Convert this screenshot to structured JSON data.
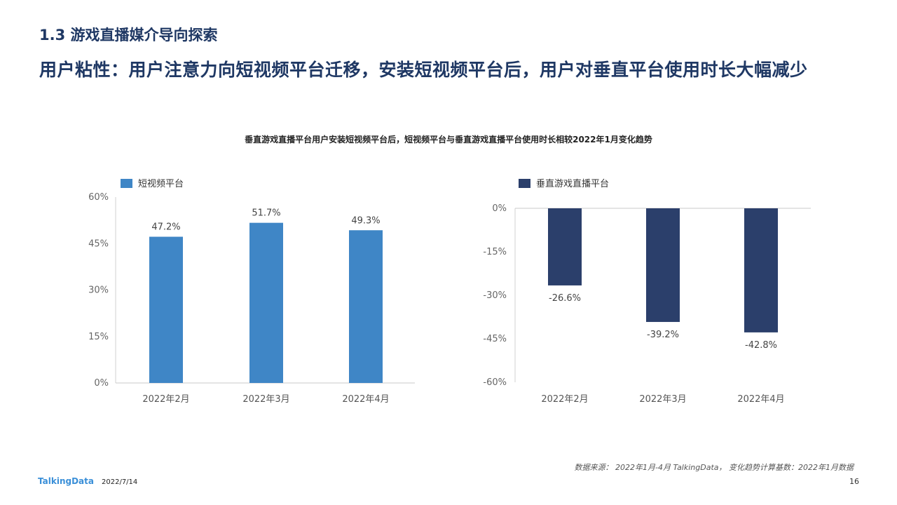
{
  "header": {
    "section_title": "1.3 游戏直播媒介导向探索",
    "headline": "用户粘性：用户注意力向短视频平台迁移，安装短视频平台后，用户对垂直平台使用时长大幅减少"
  },
  "chart_title": "垂直游戏直播平台用户安装短视频平台后，短视频平台与垂直游戏直播平台使用时长相较2022年1月变化趋势",
  "chart_data": [
    {
      "type": "bar",
      "categories": [
        "2022年2月",
        "2022年3月",
        "2022年4月"
      ],
      "series": [
        {
          "name": "短视频平台",
          "values": [
            47.2,
            51.7,
            49.3
          ],
          "color": "#3f86c6"
        }
      ],
      "value_labels": [
        "47.2%",
        "51.7%",
        "49.3%"
      ],
      "yticks": [
        "60%",
        "45%",
        "30%",
        "15%",
        "0%"
      ],
      "ylim": [
        0,
        60
      ],
      "legend_position": "top-left"
    },
    {
      "type": "bar",
      "categories": [
        "2022年2月",
        "2022年3月",
        "2022年4月"
      ],
      "series": [
        {
          "name": "垂直游戏直播平台",
          "values": [
            -26.6,
            -39.2,
            -42.8
          ],
          "color": "#2b3f6b"
        }
      ],
      "value_labels": [
        "-26.6%",
        "-39.2%",
        "-42.8%"
      ],
      "yticks": [
        "0%",
        "-15%",
        "-30%",
        "-45%",
        "-60%"
      ],
      "ylim": [
        -60,
        0
      ],
      "legend_position": "top-left"
    }
  ],
  "footer": {
    "source": "数据来源： 2022年1月-4月 TalkingData， 变化趋势计算基数：2022年1月数据",
    "logo": "TalkingData",
    "date": "2022/7/14",
    "page": "16"
  }
}
